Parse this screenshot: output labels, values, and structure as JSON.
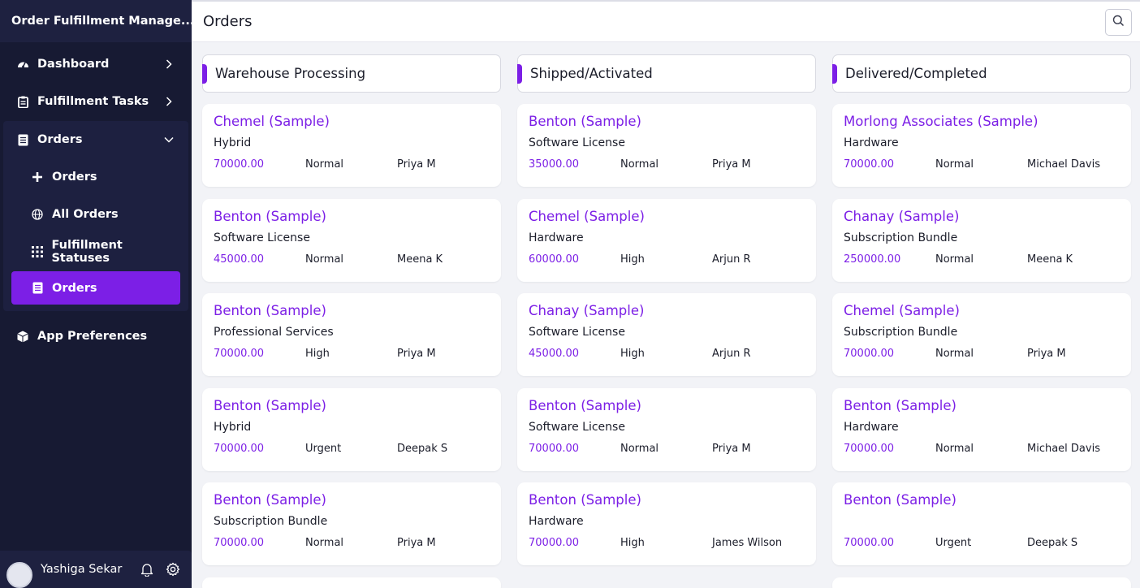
{
  "app": {
    "title": "Order Fulfillment Manage..."
  },
  "sidebar": {
    "items": [
      {
        "label": "Dashboard",
        "icon": "dashboard-icon"
      },
      {
        "label": "Fulfillment Tasks",
        "icon": "clipboard-icon"
      },
      {
        "label": "Orders",
        "icon": "document-icon"
      }
    ],
    "orders_sub": [
      {
        "label": "Orders",
        "icon": "plus-icon"
      },
      {
        "label": "All Orders",
        "icon": "globe-icon"
      },
      {
        "label": "Fulfillment Statuses",
        "icon": "grid-icon"
      },
      {
        "label": "Orders",
        "icon": "document-icon",
        "active": true
      }
    ],
    "prefs": {
      "label": "App Preferences",
      "icon": "cube-icon"
    }
  },
  "user": {
    "name": "Yashiga Sekar"
  },
  "header": {
    "title": "Orders"
  },
  "colors": {
    "accent": "#7c1fe6",
    "sidebar_bg": "#171a33",
    "main_bg": "#f2f3f7"
  },
  "columns": [
    {
      "title": "Warehouse Processing",
      "cards": [
        {
          "title": "Chemel (Sample)",
          "type": "Hybrid",
          "amount": "70000.00",
          "priority": "Normal",
          "owner": "Priya M"
        },
        {
          "title": "Benton (Sample)",
          "type": "Software License",
          "amount": "45000.00",
          "priority": "Normal",
          "owner": "Meena K"
        },
        {
          "title": "Benton (Sample)",
          "type": "Professional Services",
          "amount": "70000.00",
          "priority": "High",
          "owner": "Priya M"
        },
        {
          "title": "Benton (Sample)",
          "type": "Hybrid",
          "amount": "70000.00",
          "priority": "Urgent",
          "owner": "Deepak S"
        },
        {
          "title": "Benton (Sample)",
          "type": "Subscription Bundle",
          "amount": "70000.00",
          "priority": "Normal",
          "owner": "Priya M"
        }
      ]
    },
    {
      "title": "Shipped/Activated",
      "cards": [
        {
          "title": "Benton (Sample)",
          "type": "Software License",
          "amount": "35000.00",
          "priority": "Normal",
          "owner": "Priya M"
        },
        {
          "title": "Chemel (Sample)",
          "type": "Hardware",
          "amount": "60000.00",
          "priority": "High",
          "owner": "Arjun R"
        },
        {
          "title": "Chanay (Sample)",
          "type": "Software License",
          "amount": "45000.00",
          "priority": "High",
          "owner": "Arjun R"
        },
        {
          "title": "Benton (Sample)",
          "type": "Software License",
          "amount": "70000.00",
          "priority": "Normal",
          "owner": "Priya M"
        },
        {
          "title": "Benton (Sample)",
          "type": "Hardware",
          "amount": "70000.00",
          "priority": "High",
          "owner": "James Wilson"
        }
      ]
    },
    {
      "title": "Delivered/Completed",
      "cards": [
        {
          "title": "Morlong Associates (Sample)",
          "type": "Hardware",
          "amount": "70000.00",
          "priority": "Normal",
          "owner": "Michael Davis"
        },
        {
          "title": "Chanay (Sample)",
          "type": "Subscription Bundle",
          "amount": "250000.00",
          "priority": "Normal",
          "owner": "Meena K"
        },
        {
          "title": "Chemel (Sample)",
          "type": "Subscription Bundle",
          "amount": "70000.00",
          "priority": "Normal",
          "owner": "Priya M"
        },
        {
          "title": "Benton (Sample)",
          "type": "Hardware",
          "amount": "70000.00",
          "priority": "Normal",
          "owner": "Michael Davis"
        },
        {
          "title": "Benton (Sample)",
          "type": "",
          "amount": "70000.00",
          "priority": "Urgent",
          "owner": "Deepak S"
        }
      ]
    }
  ]
}
